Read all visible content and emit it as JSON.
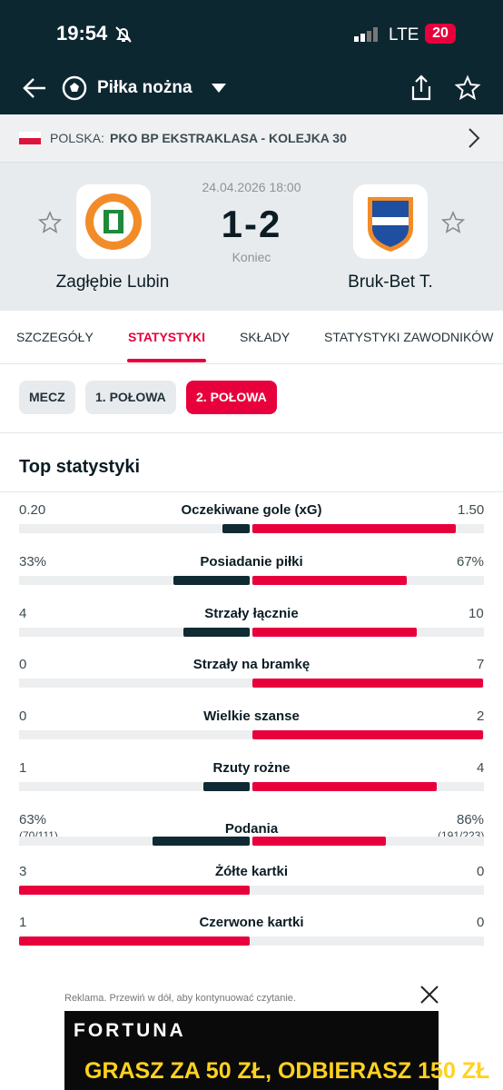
{
  "status_bar": {
    "time": "19:54",
    "network": "LTE",
    "battery": "20"
  },
  "nav": {
    "sport": "Piłka nożna"
  },
  "breadcrumb": {
    "country": "POLSKA:",
    "league": "PKO BP EKSTRAKLASA - KOLEJKA 30"
  },
  "match": {
    "datetime": "24.04.2026 18:00",
    "score": "1-2",
    "status": "Koniec",
    "home_team": "Zagłębie Lubin",
    "away_team": "Bruk-Bet T."
  },
  "tabs": {
    "items": [
      "SZCZEGÓŁY",
      "STATYSTYKI",
      "SKŁADY",
      "STATYSTYKI ZAWODNIKÓW"
    ],
    "active": 1
  },
  "periods": {
    "items": [
      "MECZ",
      "1. POŁOWA",
      "2. POŁOWA"
    ],
    "active": 2
  },
  "section_title": "Top statystyki",
  "stats": [
    {
      "name": "Oczekiwane gole (xG)",
      "home": {
        "value": 0.2,
        "label": "0.20"
      },
      "away": {
        "value": 1.5,
        "label": "1.50"
      }
    },
    {
      "name": "Posiadanie piłki",
      "home": {
        "value": 33,
        "label": "33%"
      },
      "away": {
        "value": 67,
        "label": "67%"
      }
    },
    {
      "name": "Strzały łącznie",
      "home": {
        "value": 4
      },
      "away": {
        "value": 10
      }
    },
    {
      "name": "Strzały na bramkę",
      "home": {
        "value": 0
      },
      "away": {
        "value": 7
      }
    },
    {
      "name": "Wielkie szanse",
      "home": {
        "value": 0
      },
      "away": {
        "value": 2
      }
    },
    {
      "name": "Rzuty rożne",
      "home": {
        "value": 1
      },
      "away": {
        "value": 4
      }
    },
    {
      "name": "Podania",
      "home": {
        "value": 63,
        "label": "63%",
        "detail": "(70/111)"
      },
      "away": {
        "value": 86,
        "label": "86%",
        "detail": "(191/223)"
      }
    },
    {
      "name": "Żółte kartki",
      "home": {
        "value": 3
      },
      "away": {
        "value": 0
      }
    },
    {
      "name": "Czerwone kartki",
      "home": {
        "value": 1
      },
      "away": {
        "value": 0
      }
    }
  ],
  "ad": {
    "note": "Reklama. Przewiń w dół, aby kontynuować czytanie.",
    "brand": "FORTUNA",
    "headline": "GRASZ ZA 50 ZŁ, ODBIERASZ 150 ZŁ"
  }
}
